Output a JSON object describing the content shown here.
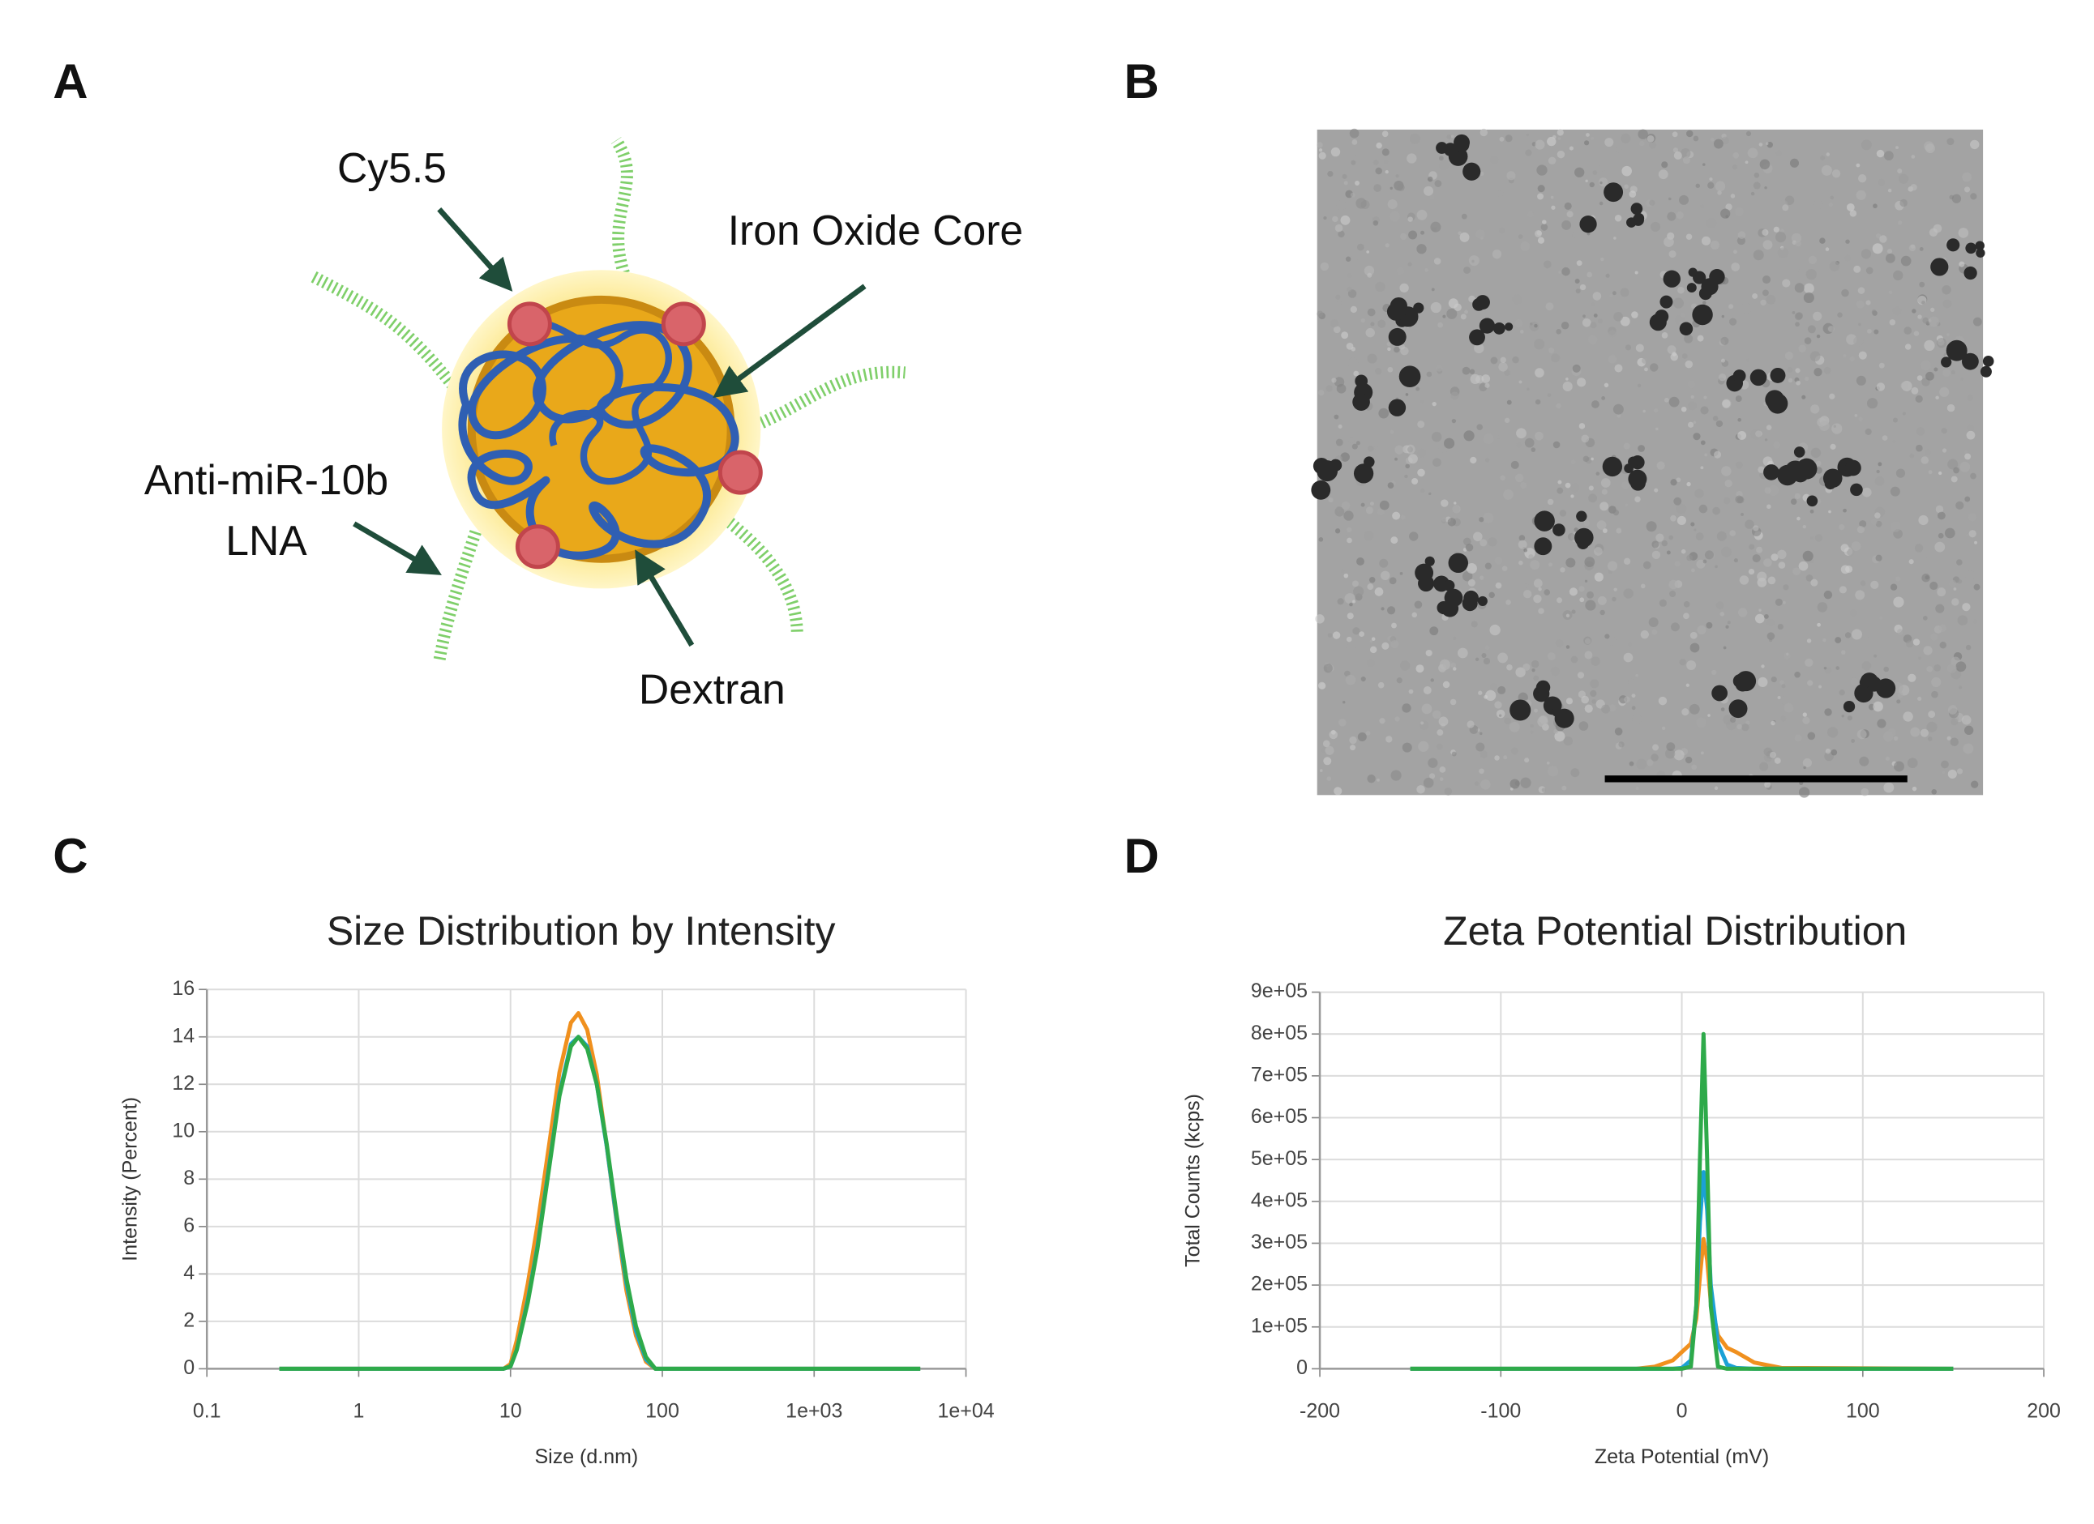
{
  "panel_labels": [
    "A",
    "B",
    "C",
    "D"
  ],
  "diagram": {
    "cy_label": "Cy5.5",
    "core_label": "Iron Oxide Core",
    "anti_mir_label": [
      "Anti-miR-10b",
      "LNA"
    ],
    "dextran_label": "Dextran"
  },
  "chart_data": [
    {
      "type": "line",
      "title": "Size Distribution by Intensity",
      "x_label": "Size (d.nm)",
      "y_label": "Intensity (Percent)",
      "xscale": "log",
      "xlim": [
        0.1,
        10000
      ],
      "xticks": [
        0.1,
        1,
        10,
        100,
        {
          "value": 1000,
          "label": "1e+03"
        },
        {
          "value": 10000,
          "label": "1e+04"
        }
      ],
      "ylim": [
        0,
        16
      ],
      "yticks": [
        0,
        2,
        4,
        6,
        8,
        10,
        12,
        14,
        16
      ],
      "grid": true,
      "x": [
        0.3,
        8,
        9,
        10,
        11,
        13,
        15,
        18,
        21,
        25,
        28,
        32,
        37,
        43,
        50,
        58,
        67,
        78,
        90,
        5000
      ],
      "series": [
        {
          "color": "#f0901e",
          "values": [
            0,
            0,
            0,
            0.2,
            1.2,
            3.6,
            6,
            9.5,
            12.5,
            14.6,
            15,
            14.3,
            12.4,
            9.4,
            6.2,
            3.3,
            1.4,
            0.3,
            0,
            0
          ]
        },
        {
          "color": "#1ba1d6",
          "values": [
            0,
            0,
            0,
            0.1,
            0.8,
            2.9,
            5.1,
            8.6,
            11.6,
            13.7,
            14,
            13.6,
            12,
            9.4,
            6.3,
            3.6,
            1.6,
            0.4,
            0,
            0
          ]
        },
        {
          "color": "#2eaa4a",
          "values": [
            0,
            0,
            0,
            0.1,
            0.8,
            2.8,
            5,
            8.5,
            11.5,
            13.6,
            14,
            13.5,
            12,
            9.5,
            6.5,
            3.8,
            1.8,
            0.5,
            0,
            0
          ]
        }
      ]
    },
    {
      "type": "line",
      "title": "Zeta Potential Distribution",
      "x_label": "Zeta Potential (mV)",
      "y_label": "Total Counts (kcps)",
      "xscale": "linear",
      "xlim": [
        -200,
        200
      ],
      "xticks": [
        -200,
        -100,
        0,
        100,
        200
      ],
      "ylim": [
        0,
        900000
      ],
      "yticks": [
        0,
        {
          "value": 100000,
          "label": "1e+05"
        },
        {
          "value": 200000,
          "label": "2e+05"
        },
        {
          "value": 300000,
          "label": "3e+05"
        },
        {
          "value": 400000,
          "label": "4e+05"
        },
        {
          "value": 500000,
          "label": "5e+05"
        },
        {
          "value": 600000,
          "label": "6e+05"
        },
        {
          "value": 700000,
          "label": "7e+05"
        },
        {
          "value": 800000,
          "label": "8e+05"
        },
        {
          "value": 900000,
          "label": "9e+05"
        }
      ],
      "grid": true,
      "x": [
        -150,
        -40,
        -25,
        -15,
        -5,
        0,
        5,
        8,
        10,
        12,
        14,
        16,
        20,
        25,
        30,
        40,
        55,
        150
      ],
      "series": [
        {
          "color": "#f0901e",
          "values": [
            0,
            0,
            0,
            5000,
            20000,
            40000,
            60000,
            120000,
            220000,
            310000,
            260000,
            160000,
            80000,
            50000,
            40000,
            15000,
            2000,
            0
          ]
        },
        {
          "color": "#1ba1d6",
          "values": [
            0,
            0,
            0,
            0,
            0,
            2000,
            20000,
            150000,
            350000,
            470000,
            380000,
            200000,
            60000,
            10000,
            2000,
            0,
            0,
            0
          ]
        },
        {
          "color": "#2eaa4a",
          "values": [
            0,
            0,
            0,
            0,
            0,
            0,
            5000,
            150000,
            500000,
            800000,
            500000,
            150000,
            5000,
            0,
            0,
            0,
            0,
            0
          ]
        }
      ]
    }
  ]
}
